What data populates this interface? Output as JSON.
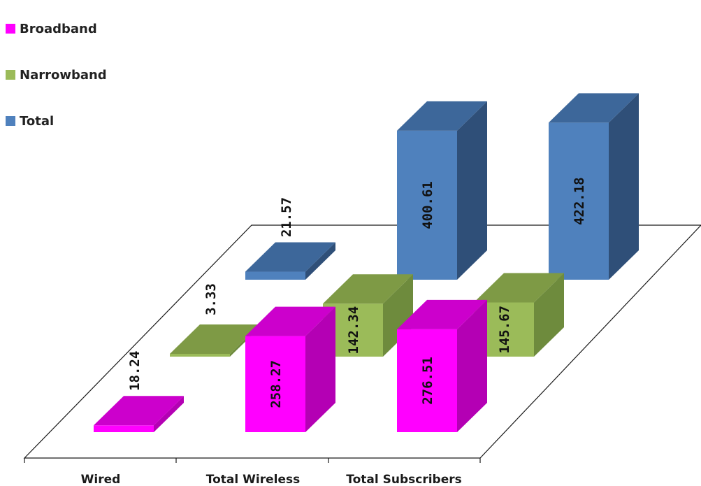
{
  "chart_data": {
    "type": "bar",
    "categories": [
      "Wired",
      "Total Wireless",
      "Total Subscribers"
    ],
    "series": [
      {
        "name": "Broadband",
        "values": [
          18.24,
          258.27,
          276.51
        ]
      },
      {
        "name": "Narrowband",
        "values": [
          3.33,
          142.34,
          145.67
        ]
      },
      {
        "name": "Total",
        "values": [
          21.57,
          400.61,
          422.18
        ]
      }
    ],
    "value_labels": [
      [
        "18.24",
        "258.27",
        "276.51"
      ],
      [
        "3.33",
        "142.34",
        "145.67"
      ],
      [
        "21.57",
        "400.61",
        "422.18"
      ]
    ],
    "title": "",
    "xlabel": "",
    "ylabel": "",
    "grid": false,
    "legend_position": "top-left",
    "colors": {
      "Broadband": {
        "front": "#FF00FF",
        "side": "#B400B4",
        "top": "#CC00CC"
      },
      "Narrowband": {
        "front": "#9BBB59",
        "side": "#6E8B3D",
        "top": "#7E9A45"
      },
      "Total": {
        "front": "#4F81BD",
        "side": "#2F4F78",
        "top": "#3D679A"
      }
    }
  },
  "legend": {
    "items": [
      {
        "label": "Broadband",
        "color": "#FF00FF"
      },
      {
        "label": "Narrowband",
        "color": "#9BBB59"
      },
      {
        "label": "Total",
        "color": "#4F81BD"
      }
    ]
  }
}
